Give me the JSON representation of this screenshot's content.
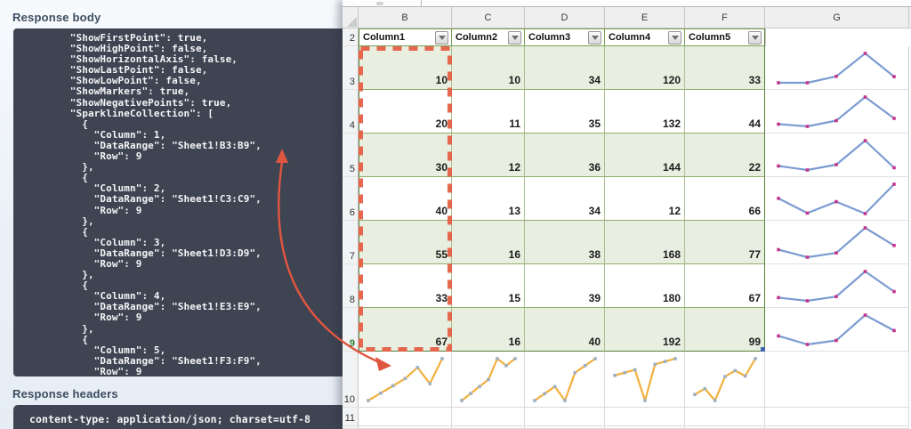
{
  "panel": {
    "response_body_label": "Response body",
    "response_headers_label": "Response headers",
    "response_body_lines": [
      "        \"ShowFirstPoint\": true,",
      "        \"ShowHighPoint\": false,",
      "        \"ShowHorizontalAxis\": false,",
      "        \"ShowLastPoint\": false,",
      "        \"ShowLowPoint\": false,",
      "        \"ShowMarkers\": true,",
      "        \"ShowNegativePoints\": true,",
      "        \"SparklineCollection\": [",
      "          {",
      "            \"Column\": 1,",
      "            \"DataRange\": \"Sheet1!B3:B9\",",
      "            \"Row\": 9",
      "          },",
      "          {",
      "            \"Column\": 2,",
      "            \"DataRange\": \"Sheet1!C3:C9\",",
      "            \"Row\": 9",
      "          },",
      "          {",
      "            \"Column\": 3,",
      "            \"DataRange\": \"Sheet1!D3:D9\",",
      "            \"Row\": 9",
      "          },",
      "          {",
      "            \"Column\": 4,",
      "            \"DataRange\": \"Sheet1!E3:E9\",",
      "            \"Row\": 9",
      "          },",
      "          {",
      "            \"Column\": 5,",
      "            \"DataRange\": \"Sheet1!F3:F9\",",
      "            \"Row\": 9"
    ],
    "response_headers_code": "content-type: application/json; charset=utf-8"
  },
  "sheet": {
    "column_letters": [
      "B",
      "C",
      "D",
      "E",
      "F",
      "G"
    ],
    "header_row": {
      "row_number": "2",
      "cells": [
        "Column1",
        "Column2",
        "Column3",
        "Column4",
        "Column5"
      ]
    },
    "data_rows": [
      {
        "row_number": "3",
        "values": [
          "10",
          "10",
          "34",
          "120",
          "33"
        ],
        "banded": true
      },
      {
        "row_number": "4",
        "values": [
          "20",
          "11",
          "35",
          "132",
          "44"
        ],
        "banded": false
      },
      {
        "row_number": "5",
        "values": [
          "30",
          "12",
          "36",
          "144",
          "22"
        ],
        "banded": true
      },
      {
        "row_number": "6",
        "values": [
          "40",
          "13",
          "34",
          "12",
          "66"
        ],
        "banded": false
      },
      {
        "row_number": "7",
        "values": [
          "55",
          "16",
          "38",
          "168",
          "77"
        ],
        "banded": true
      },
      {
        "row_number": "8",
        "values": [
          "33",
          "15",
          "39",
          "180",
          "67"
        ],
        "banded": false
      },
      {
        "row_number": "9",
        "values": [
          "67",
          "16",
          "40",
          "192",
          "99"
        ],
        "banded": true,
        "active": true
      }
    ],
    "extra_row_numbers": [
      "10",
      "11"
    ],
    "active_row_number": "9"
  },
  "colors": {
    "sparkline_row_line": "#7b9cd1",
    "sparkline_row_marker": "#c2368f",
    "sparkline_col_line": "#f2b03c",
    "sparkline_col_marker": "#9fb0c0",
    "selection_dash": "#e45b40",
    "arrow": "#df5640",
    "table_band_fill": "#e9efe0",
    "table_border": "#7aa255"
  },
  "chart_data": [
    {
      "type": "line",
      "cell": "G3",
      "orientation": "row",
      "values": [
        10,
        10,
        34,
        120,
        33
      ]
    },
    {
      "type": "line",
      "cell": "G4",
      "orientation": "row",
      "values": [
        20,
        11,
        35,
        132,
        44
      ]
    },
    {
      "type": "line",
      "cell": "G5",
      "orientation": "row",
      "values": [
        30,
        12,
        36,
        144,
        22
      ]
    },
    {
      "type": "line",
      "cell": "G6",
      "orientation": "row",
      "values": [
        40,
        13,
        34,
        12,
        66
      ]
    },
    {
      "type": "line",
      "cell": "G7",
      "orientation": "row",
      "values": [
        55,
        16,
        38,
        168,
        77
      ]
    },
    {
      "type": "line",
      "cell": "G8",
      "orientation": "row",
      "values": [
        33,
        15,
        39,
        180,
        67
      ]
    },
    {
      "type": "line",
      "cell": "G9",
      "orientation": "row",
      "values": [
        67,
        16,
        40,
        192,
        99
      ]
    },
    {
      "type": "line",
      "cell": "B10",
      "orientation": "column",
      "values": [
        10,
        20,
        30,
        40,
        55,
        33,
        67
      ]
    },
    {
      "type": "line",
      "cell": "C10",
      "orientation": "column",
      "values": [
        10,
        11,
        12,
        13,
        16,
        15,
        16
      ]
    },
    {
      "type": "line",
      "cell": "D10",
      "orientation": "column",
      "values": [
        34,
        35,
        36,
        34,
        38,
        39,
        40
      ]
    },
    {
      "type": "line",
      "cell": "E10",
      "orientation": "column",
      "values": [
        120,
        132,
        144,
        12,
        168,
        180,
        192
      ]
    },
    {
      "type": "line",
      "cell": "F10",
      "orientation": "column",
      "values": [
        33,
        44,
        22,
        66,
        77,
        67,
        99
      ]
    }
  ]
}
